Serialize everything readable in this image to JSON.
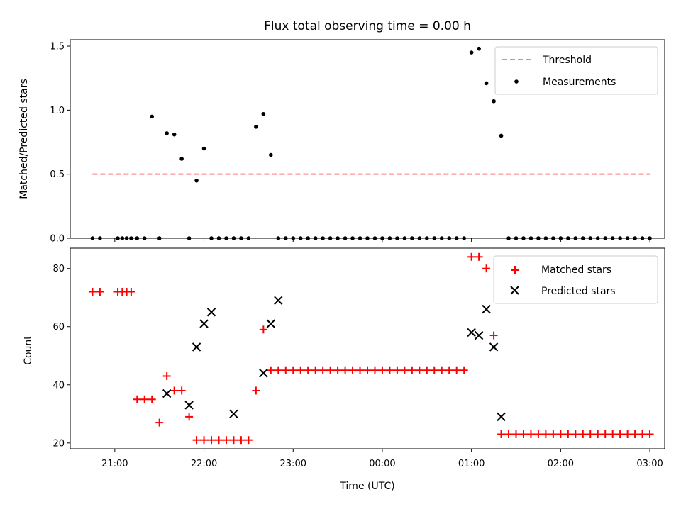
{
  "chart_data": [
    {
      "type": "scatter",
      "title": "Flux total observing time = 0.00 h",
      "xlabel": "",
      "ylabel": "Matched/Predicted stars",
      "xlim": [
        "20:30",
        "03:10"
      ],
      "ylim": [
        0,
        1.55
      ],
      "yticks": [
        "0.0",
        "0.5",
        "1.0",
        "1.5"
      ],
      "legend_position": "upper right",
      "threshold": {
        "name": "Threshold",
        "value": 0.5,
        "x_start": "20:45",
        "x_end": "03:00",
        "color": "#ff7f7f",
        "style": "dashed"
      },
      "series": [
        {
          "name": "Measurements",
          "color": "#000000",
          "marker": "dot",
          "x": [
            "20:45",
            "20:50",
            "21:02",
            "21:05",
            "21:08",
            "21:11",
            "21:15",
            "21:20",
            "21:25",
            "21:30",
            "21:35",
            "21:40",
            "21:45",
            "21:50",
            "21:55",
            "22:00",
            "22:05",
            "22:10",
            "22:15",
            "22:20",
            "22:25",
            "22:30",
            "22:35",
            "22:40",
            "22:45",
            "22:50",
            "22:55",
            "23:00",
            "23:05",
            "23:10",
            "23:15",
            "23:20",
            "23:25",
            "23:30",
            "23:35",
            "23:40",
            "23:45",
            "23:50",
            "23:55",
            "00:00",
            "00:05",
            "00:10",
            "00:15",
            "00:20",
            "00:25",
            "00:30",
            "00:35",
            "00:40",
            "00:45",
            "00:50",
            "00:55",
            "01:00",
            "01:05",
            "01:10",
            "01:15",
            "01:20",
            "01:25",
            "01:30",
            "01:35",
            "01:40",
            "01:45",
            "01:50",
            "01:55",
            "02:00",
            "02:05",
            "02:10",
            "02:15",
            "02:20",
            "02:25",
            "02:30",
            "02:35",
            "02:40",
            "02:45",
            "02:50",
            "02:55",
            "03:00"
          ],
          "y": [
            0,
            0,
            0,
            0,
            0,
            0,
            0,
            0,
            0.95,
            0,
            0.82,
            0.81,
            0.62,
            0,
            0.45,
            0.7,
            0,
            0,
            0,
            0,
            0,
            0,
            0.87,
            0.97,
            0.65,
            0,
            0,
            0,
            0,
            0,
            0,
            0,
            0,
            0,
            0,
            0,
            0,
            0,
            0,
            0,
            0,
            0,
            0,
            0,
            0,
            0,
            0,
            0,
            0,
            0,
            0,
            1.45,
            1.48,
            1.21,
            1.07,
            0.8,
            0,
            0,
            0,
            0,
            0,
            0,
            0,
            0,
            0,
            0,
            0,
            0,
            0,
            0,
            0,
            0,
            0,
            0,
            0,
            0
          ]
        }
      ]
    },
    {
      "type": "scatter",
      "title": "",
      "xlabel": "Time (UTC)",
      "ylabel": "Count",
      "xlim": [
        "20:30",
        "03:10"
      ],
      "ylim": [
        18,
        87
      ],
      "xticks": [
        "21:00",
        "22:00",
        "23:00",
        "00:00",
        "01:00",
        "02:00",
        "03:00"
      ],
      "yticks": [
        "20",
        "40",
        "60",
        "80"
      ],
      "legend_position": "upper right",
      "series": [
        {
          "name": "Matched stars",
          "color": "#ff0000",
          "marker": "plus",
          "x": [
            "20:45",
            "20:50",
            "21:02",
            "21:05",
            "21:08",
            "21:11",
            "21:15",
            "21:20",
            "21:25",
            "21:30",
            "21:35",
            "21:40",
            "21:45",
            "21:50",
            "21:55",
            "22:00",
            "22:05",
            "22:10",
            "22:15",
            "22:20",
            "22:25",
            "22:30",
            "22:35",
            "22:40",
            "22:45",
            "22:50",
            "22:55",
            "23:00",
            "23:05",
            "23:10",
            "23:15",
            "23:20",
            "23:25",
            "23:30",
            "23:35",
            "23:40",
            "23:45",
            "23:50",
            "23:55",
            "00:00",
            "00:05",
            "00:10",
            "00:15",
            "00:20",
            "00:25",
            "00:30",
            "00:35",
            "00:40",
            "00:45",
            "00:50",
            "00:55",
            "01:00",
            "01:05",
            "01:10",
            "01:15",
            "01:20",
            "01:25",
            "01:30",
            "01:35",
            "01:40",
            "01:45",
            "01:50",
            "01:55",
            "02:00",
            "02:05",
            "02:10",
            "02:15",
            "02:20",
            "02:25",
            "02:30",
            "02:35",
            "02:40",
            "02:45",
            "02:50",
            "02:55",
            "03:00"
          ],
          "y": [
            72,
            72,
            72,
            72,
            72,
            72,
            35,
            35,
            35,
            27,
            43,
            38,
            38,
            29,
            21,
            21,
            21,
            21,
            21,
            21,
            21,
            21,
            38,
            59,
            45,
            45,
            45,
            45,
            45,
            45,
            45,
            45,
            45,
            45,
            45,
            45,
            45,
            45,
            45,
            45,
            45,
            45,
            45,
            45,
            45,
            45,
            45,
            45,
            45,
            45,
            45,
            84,
            84,
            80,
            57,
            23,
            23,
            23,
            23,
            23,
            23,
            23,
            23,
            23,
            23,
            23,
            23,
            23,
            23,
            23,
            23,
            23,
            23,
            23,
            23,
            23
          ]
        },
        {
          "name": "Predicted stars",
          "color": "#000000",
          "marker": "x",
          "x": [
            "21:35",
            "21:50",
            "21:55",
            "22:00",
            "22:05",
            "22:20",
            "22:40",
            "22:45",
            "22:50",
            "01:00",
            "01:05",
            "01:10",
            "01:15",
            "01:20"
          ],
          "y": [
            37,
            33,
            53,
            61,
            65,
            30,
            44,
            61,
            69,
            58,
            57,
            66,
            53,
            29
          ]
        }
      ]
    }
  ]
}
